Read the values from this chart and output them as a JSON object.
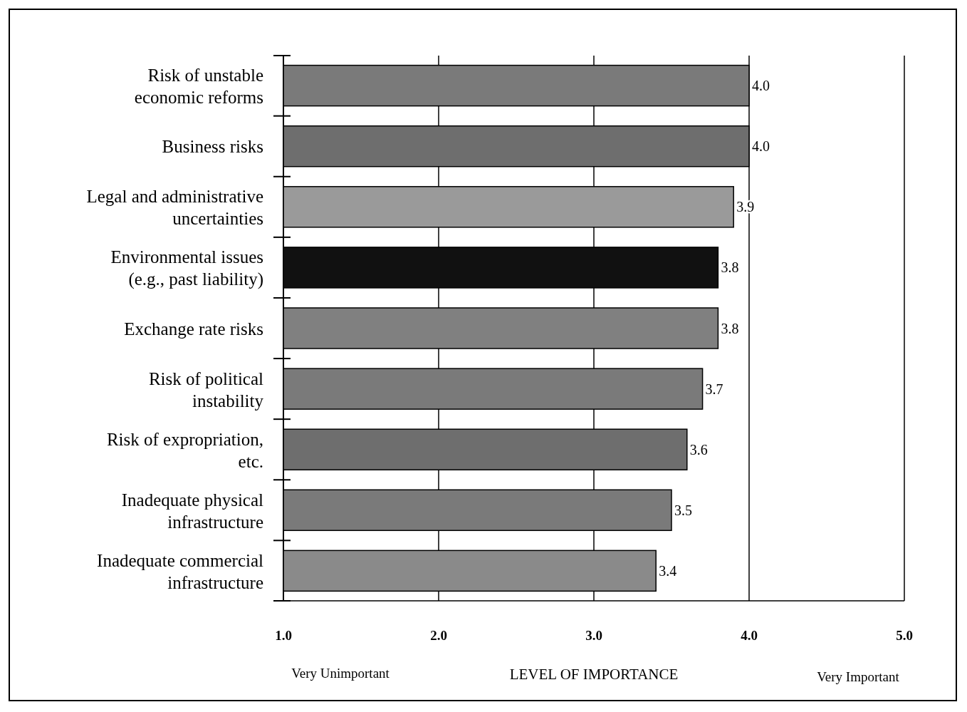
{
  "chart_data": {
    "type": "bar",
    "orientation": "horizontal",
    "categories": [
      "Risk of unstable\neconomic reforms",
      "Business risks",
      "Legal and administrative\nuncertainties",
      "Environmental issues\n(e.g., past liability)",
      "Exchange rate risks",
      "Risk of political\ninstability",
      "Risk of expropriation,\netc.",
      "Inadequate physical\ninfrastructure",
      "Inadequate commercial\ninfrastructure"
    ],
    "values": [
      4.0,
      4.0,
      3.9,
      3.8,
      3.8,
      3.7,
      3.6,
      3.5,
      3.4
    ],
    "value_labels": [
      "4.0",
      "4.0",
      "3.9",
      "3.8",
      "3.8",
      "3.7",
      "3.6",
      "3.5",
      "3.4"
    ],
    "colors": [
      "#7a7a7a",
      "#6e6e6e",
      "#9a9a9a",
      "#111111",
      "#808080",
      "#7a7a7a",
      "#6e6e6e",
      "#7a7a7a",
      "#8a8a8a"
    ],
    "xlim": [
      1,
      5
    ],
    "xticks": [
      {
        "value": 1,
        "label": "1.0"
      },
      {
        "value": 2,
        "label": "2.0"
      },
      {
        "value": 3,
        "label": "3.0"
      },
      {
        "value": 4,
        "label": "4.0"
      },
      {
        "value": 5,
        "label": "5.0"
      }
    ],
    "xlabel": "LEVEL OF IMPORTANCE",
    "annotations": [
      "Very Unimportant",
      "Very Important"
    ],
    "grid": "x"
  }
}
